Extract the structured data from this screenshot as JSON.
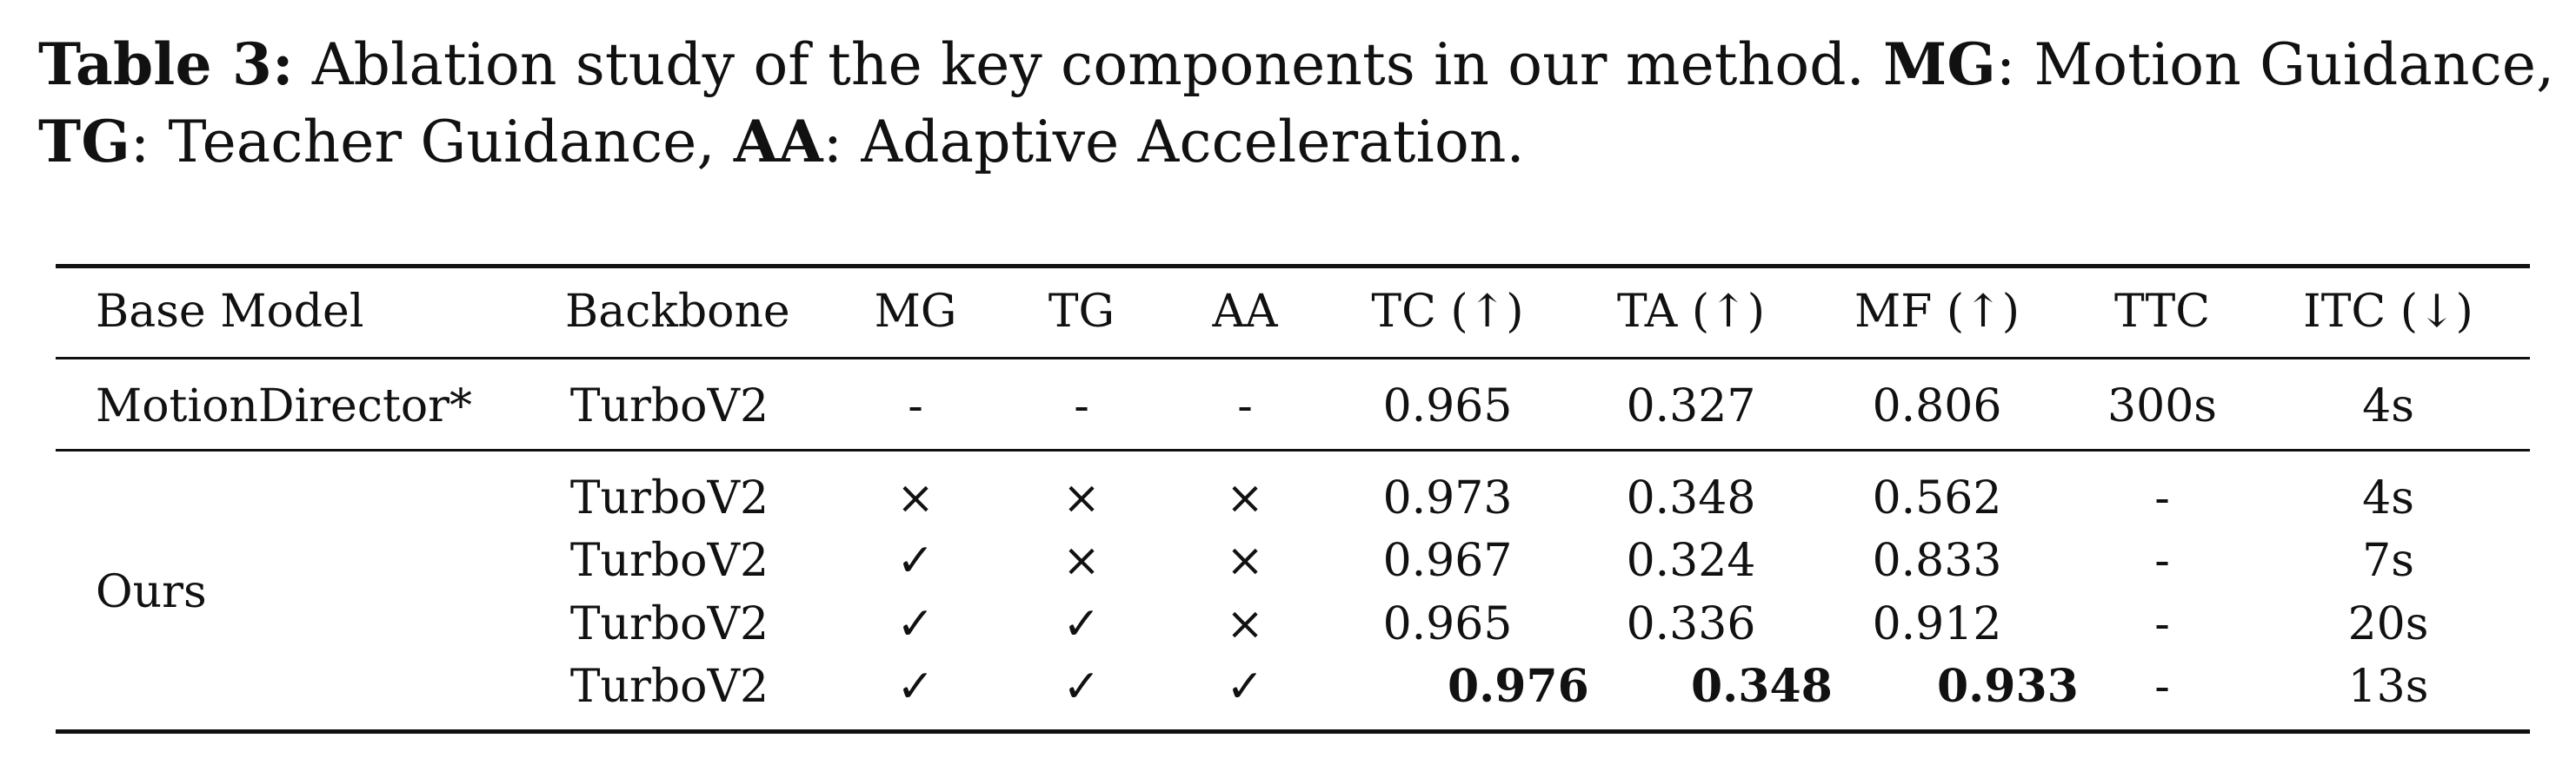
{
  "caption": {
    "table_label": "Table 3:",
    "text_1": " Ablation study of the key components in our method. ",
    "mg_abbr": "MG",
    "mg_def": ": Motion Guidance,",
    "tg_abbr": "TG",
    "tg_def": ": Teacher Guidance, ",
    "aa_abbr": "AA",
    "aa_def": ": Adaptive Acceleration."
  },
  "table": {
    "headers": [
      "Base Model",
      "Backbone",
      "MG",
      "TG",
      "AA",
      "TC (↑)",
      "TA (↑)",
      "MF (↑)",
      "TTC",
      "ITC (↓)"
    ],
    "motiondirector_row": {
      "base_model": "MotionDirector*",
      "cells": [
        "TurboV2",
        "-",
        "-",
        "-",
        "0.965",
        "0.327",
        "0.806",
        "300s",
        "4s"
      ]
    },
    "ours_group": {
      "base_model": "Ours",
      "rows": [
        [
          "TurboV2",
          "×",
          "×",
          "×",
          "0.973",
          "0.348",
          "0.562",
          "-",
          "4s"
        ],
        [
          "TurboV2",
          "✓",
          "×",
          "×",
          "0.967",
          "0.324",
          "0.833",
          "-",
          "7s"
        ],
        [
          "TurboV2",
          "✓",
          "✓",
          "×",
          "0.965",
          "0.336",
          "0.912",
          "-",
          "20s"
        ],
        [
          "TurboV2",
          "✓",
          "✓",
          "✓",
          "0.976",
          "0.348",
          "0.933",
          "-",
          "13s"
        ]
      ],
      "bold_cells": "last row TC, TA, MF"
    }
  }
}
